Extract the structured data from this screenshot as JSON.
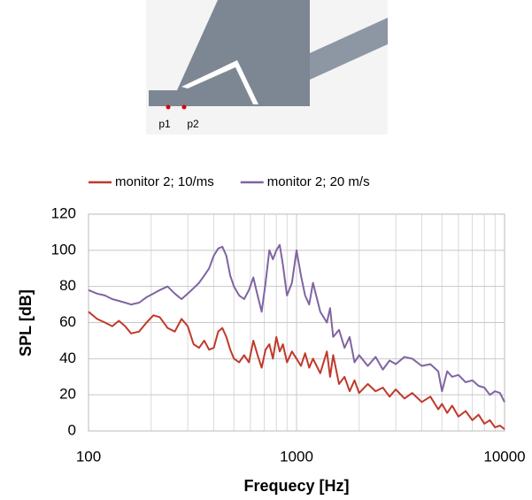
{
  "figure": {
    "labels": [
      "p1",
      "p2"
    ]
  },
  "chart_data": {
    "type": "line",
    "xlabel": "Frequecy [Hz]",
    "ylabel": "SPL [dB]",
    "log_x": true,
    "grid": true,
    "legend": "top",
    "xlim": [
      100,
      10000
    ],
    "xticks": [
      100,
      1000,
      10000
    ],
    "ylim": [
      0,
      120
    ],
    "yticks": [
      0,
      20,
      40,
      60,
      80,
      100,
      120
    ],
    "x": [
      100,
      110,
      120,
      130,
      140,
      150,
      160,
      175,
      190,
      205,
      220,
      240,
      260,
      280,
      300,
      320,
      340,
      360,
      380,
      400,
      420,
      440,
      460,
      480,
      500,
      530,
      560,
      590,
      620,
      650,
      680,
      710,
      740,
      770,
      800,
      830,
      860,
      900,
      950,
      1000,
      1050,
      1100,
      1150,
      1200,
      1300,
      1400,
      1450,
      1500,
      1600,
      1700,
      1800,
      1900,
      2000,
      2200,
      2400,
      2600,
      2800,
      3000,
      3300,
      3600,
      4000,
      4400,
      4800,
      5000,
      5300,
      5600,
      6000,
      6500,
      7000,
      7500,
      8000,
      8500,
      9000,
      9500,
      10000
    ],
    "series": [
      {
        "name": "monitor 2; 10/ms",
        "color": "#c0392b",
        "values": [
          66,
          62,
          60,
          58,
          61,
          58,
          54,
          55,
          60,
          64,
          63,
          57,
          55,
          62,
          58,
          48,
          46,
          50,
          45,
          46,
          55,
          57,
          52,
          45,
          40,
          38,
          42,
          38,
          50,
          42,
          35,
          45,
          48,
          40,
          52,
          44,
          48,
          38,
          44,
          40,
          36,
          43,
          35,
          40,
          32,
          44,
          30,
          42,
          26,
          30,
          22,
          28,
          21,
          26,
          22,
          24,
          19,
          23,
          18,
          21,
          16,
          19,
          12,
          15,
          10,
          14,
          8,
          11,
          6,
          9,
          4,
          6,
          2,
          3,
          1
        ]
      },
      {
        "name": "monitor 2; 20 m/s",
        "color": "#8064a2",
        "values": [
          78,
          76,
          75,
          73,
          72,
          71,
          70,
          71,
          74,
          76,
          78,
          80,
          76,
          73,
          76,
          79,
          82,
          86,
          90,
          97,
          101,
          102,
          97,
          86,
          80,
          75,
          73,
          78,
          85,
          75,
          66,
          82,
          100,
          95,
          100,
          103,
          92,
          75,
          82,
          100,
          86,
          75,
          70,
          82,
          66,
          60,
          68,
          52,
          56,
          46,
          52,
          38,
          42,
          36,
          41,
          34,
          39,
          37,
          41,
          40,
          36,
          37,
          33,
          22,
          33,
          30,
          31,
          27,
          28,
          25,
          24,
          20,
          22,
          21,
          16
        ]
      }
    ]
  }
}
